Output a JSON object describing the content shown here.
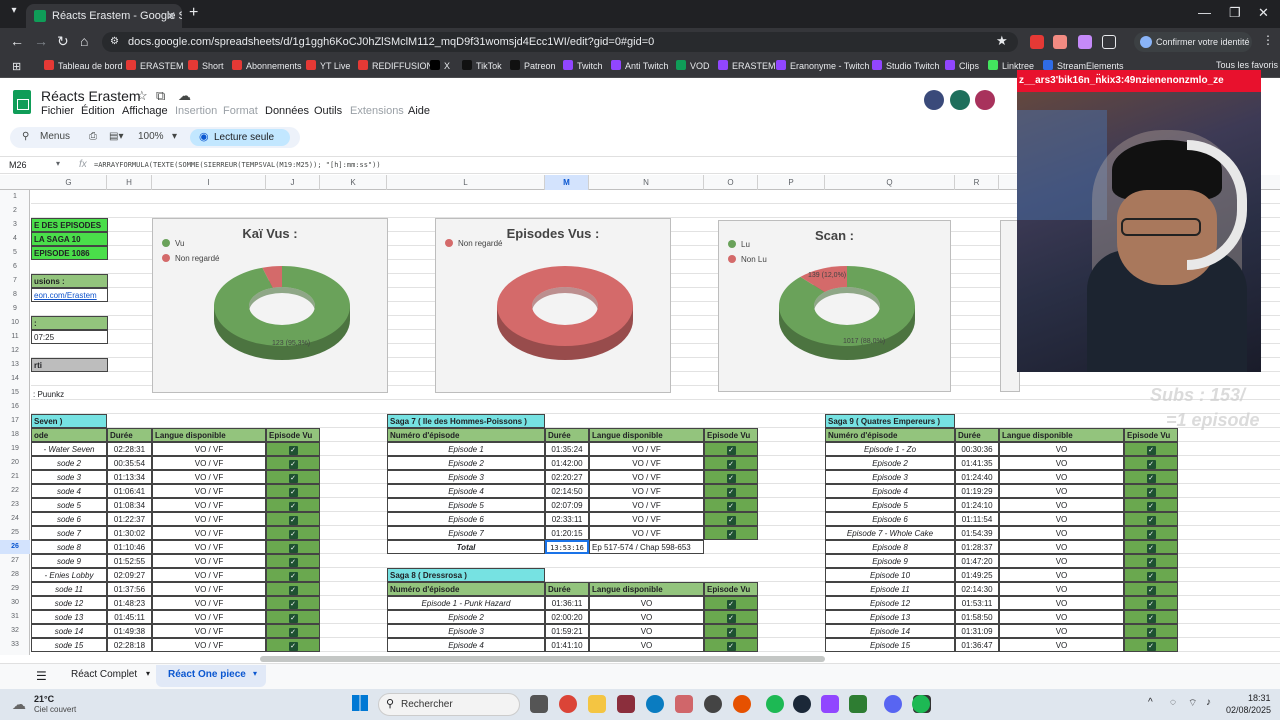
{
  "browser": {
    "tab_title": "Réacts Erastem - Google Sheets",
    "url": "docs.google.com/spreadsheets/d/1g1ggh6KoCJ0hZlSMclM112_mqD9f31womsjd4Ecc1WI/edit?gid=0#gid=0",
    "confirm_identity": "Confirmer votre identité",
    "bookmarks": [
      "Tableau de bord",
      "ERASTEM",
      "Short",
      "Abonnements",
      "YT Live",
      "REDIFFUSION",
      "X",
      "TikTok",
      "Patreon",
      "Twitch",
      "Anti Twitch",
      "VOD",
      "ERASTEM",
      "Eranonyme - Twitch",
      "Studio Twitch",
      "Clips",
      "Linktree",
      "StreamElements"
    ],
    "all_bookmarks": "Tous les favoris"
  },
  "sheets": {
    "title": "Réacts Erastem",
    "menus": [
      "Fichier",
      "Édition",
      "Affichage",
      "Insertion",
      "Format",
      "Données",
      "Outils",
      "Extensions",
      "Aide"
    ],
    "disabled_menus": [
      "Insertion",
      "Format",
      "Extensions"
    ],
    "menus_label": "Menus",
    "zoom": "100%",
    "read_only": "Lecture seule",
    "name_box": "M26",
    "formula": "=ARRAYFORMULA(TEXTE(SOMME(SIERREUR(TEMPSVAL(M19:M25)); \"[h]:mm:ss\"))",
    "columns": [
      "G",
      "H",
      "I",
      "J",
      "K",
      "L",
      "M",
      "N",
      "O",
      "P",
      "Q",
      "R"
    ],
    "rows": [
      "1",
      "2",
      "3",
      "4",
      "5",
      "6",
      "7",
      "8",
      "9",
      "10",
      "11",
      "12",
      "13",
      "14",
      "15",
      "16",
      "17",
      "18",
      "19",
      "20",
      "21",
      "22",
      "23",
      "24",
      "25",
      "26",
      "27",
      "28",
      "29",
      "30",
      "31",
      "32",
      "33"
    ]
  },
  "left_panel": {
    "r3": "E DES EPISODES",
    "r4": "LA SAGA 10",
    "r5": "EPISODE 1086",
    "r7": "usions :",
    "r8": "eon.com/Erastem",
    "r10": ":",
    "r11": "07:25",
    "r13": "rti",
    "r15": ":  Puunkz"
  },
  "charts": [
    {
      "title": "Kaï Vus :",
      "legend": [
        "Vu",
        "Non regardé"
      ],
      "label": "123 (95,3%)"
    },
    {
      "title": "Episodes Vus :",
      "legend": [
        "Non regardé"
      ],
      "label": ""
    },
    {
      "title": "Scan :",
      "legend": [
        "Lu",
        "Non Lu"
      ],
      "label": "1017 (88,0%)",
      "label2": "139 (12,0%)"
    }
  ],
  "chart_data": [
    {
      "type": "pie",
      "title": "Kaï Vus :",
      "categories": [
        "Vu",
        "Non regardé"
      ],
      "values": [
        123,
        6
      ],
      "colors": [
        "#6aa25a",
        "#d46a6a"
      ]
    },
    {
      "type": "pie",
      "title": "Episodes Vus :",
      "categories": [
        "Non regardé"
      ],
      "values": [
        1
      ],
      "colors": [
        "#d46a6a"
      ]
    },
    {
      "type": "pie",
      "title": "Scan :",
      "categories": [
        "Lu",
        "Non Lu"
      ],
      "values": [
        1017,
        139
      ],
      "colors": [
        "#6aa25a",
        "#d46a6a"
      ]
    }
  ],
  "headers": {
    "num": "Numéro d'épisode",
    "num_short": "ode",
    "duree": "Durée",
    "langue": "Langue disponible",
    "vu": "Episode Vu"
  },
  "saga6": {
    "title": "Seven )",
    "rows": [
      [
        "- Water Seven",
        "02:28:31",
        "VO / VF"
      ],
      [
        "sode 2",
        "00:35:54",
        "VO / VF"
      ],
      [
        "sode 3",
        "01:13:34",
        "VO / VF"
      ],
      [
        "sode 4",
        "01:06:41",
        "VO / VF"
      ],
      [
        "sode 5",
        "01:08:34",
        "VO / VF"
      ],
      [
        "sode 6",
        "01:22:37",
        "VO / VF"
      ],
      [
        "sode 7",
        "01:30:02",
        "VO / VF"
      ],
      [
        "sode 8",
        "01:10:46",
        "VO / VF"
      ],
      [
        "sode 9",
        "01:52:55",
        "VO / VF"
      ],
      [
        "- Enies Lobby",
        "02:09:27",
        "VO / VF"
      ],
      [
        "sode 11",
        "01:37:56",
        "VO / VF"
      ],
      [
        "sode 12",
        "01:48:23",
        "VO / VF"
      ],
      [
        "sode 13",
        "01:45:11",
        "VO / VF"
      ],
      [
        "sode 14",
        "01:49:38",
        "VO / VF"
      ],
      [
        "sode 15",
        "02:28:18",
        "VO / VF"
      ]
    ]
  },
  "saga7": {
    "title": "Saga 7 ( Ile des Hommes-Poissons )",
    "rows": [
      [
        "Episode 1",
        "01:35:24",
        "VO / VF"
      ],
      [
        "Episode 2",
        "01:42:00",
        "VO / VF"
      ],
      [
        "Episode 3",
        "02:20:27",
        "VO / VF"
      ],
      [
        "Episode 4",
        "02:14:50",
        "VO / VF"
      ],
      [
        "Episode 5",
        "02:07:09",
        "VO / VF"
      ],
      [
        "Episode 6",
        "02:33:11",
        "VO / VF"
      ],
      [
        "Episode 7",
        "01:20:15",
        "VO / VF"
      ]
    ],
    "total_label": "Total",
    "total_value": "13:53:16",
    "total_note": "Ep 517-574 / Chap 598-653"
  },
  "saga8": {
    "title": "Saga 8 ( Dressrosa )",
    "rows": [
      [
        "Episode 1 - Punk Hazard",
        "01:36:11",
        "VO"
      ],
      [
        "Episode 2",
        "02:00:20",
        "VO"
      ],
      [
        "Episode 3",
        "01:59:21",
        "VO"
      ],
      [
        "Episode 4",
        "01:41:10",
        "VO"
      ]
    ]
  },
  "saga9": {
    "title": "Saga 9 ( Quatres Empereurs )",
    "rows": [
      [
        "Episode 1 - Zo",
        "00:30:36",
        "VO"
      ],
      [
        "Episode 2",
        "01:41:35",
        "VO"
      ],
      [
        "Episode 3",
        "01:24:40",
        "VO"
      ],
      [
        "Episode 4",
        "01:19:29",
        "VO"
      ],
      [
        "Episode 5",
        "01:24:10",
        "VO"
      ],
      [
        "Episode 6",
        "01:11:54",
        "VO"
      ],
      [
        "Episode 7 - Whole Cake",
        "01:54:39",
        "VO"
      ],
      [
        "Episode 8",
        "01:28:37",
        "VO"
      ],
      [
        "Episode 9",
        "01:47:20",
        "VO"
      ],
      [
        "Episode 10",
        "01:49:25",
        "VO"
      ],
      [
        "Episode 11",
        "02:14:30",
        "VO"
      ],
      [
        "Episode 12",
        "01:53:11",
        "VO"
      ],
      [
        "Episode 13",
        "01:58:50",
        "VO"
      ],
      [
        "Episode 14",
        "01:31:09",
        "VO"
      ],
      [
        "Episode 15",
        "01:36:47",
        "VO"
      ]
    ]
  },
  "overlay": {
    "ticker": "z__ars3'bik16n_n̈kix3:49nzienenonzmlo_ze",
    "subs": "Subs : 153/",
    "subs2": "=1 episode"
  },
  "sheet_tabs": [
    "Réact Complet",
    "Réact One piece"
  ],
  "taskbar": {
    "weather_temp": "21°C",
    "weather_desc": "Ciel couvert",
    "search": "Rechercher",
    "time": "18:31",
    "date": "02/08/2025"
  }
}
